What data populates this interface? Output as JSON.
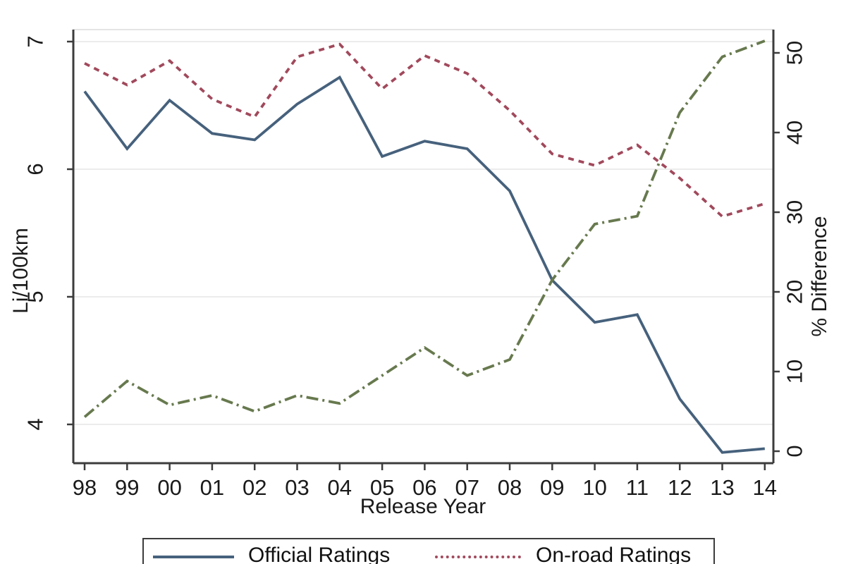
{
  "chart_data": {
    "type": "line",
    "title": "",
    "xlabel": "Release Year",
    "ylabel_left": "Li/100km",
    "ylabel_right": "% Difference",
    "categories": [
      "98",
      "99",
      "00",
      "01",
      "02",
      "03",
      "04",
      "05",
      "06",
      "07",
      "08",
      "09",
      "10",
      "11",
      "12",
      "13",
      "14"
    ],
    "left_axis": {
      "tick_labels": [
        "7",
        "6",
        "5",
        "4"
      ],
      "tick_values": [
        7,
        6,
        5,
        4
      ],
      "range_approx": [
        3.7,
        7.1
      ],
      "grid": true
    },
    "right_axis": {
      "tick_labels": [
        "0",
        "10",
        "20",
        "30",
        "40",
        "50"
      ],
      "tick_values": [
        0,
        10,
        20,
        30,
        40,
        50
      ],
      "range_approx": [
        -1.5,
        53
      ],
      "grid": false
    },
    "series": [
      {
        "name": "Official Ratings",
        "axis": "left",
        "style": "solid",
        "color": "#46617c",
        "values": [
          6.61,
          6.16,
          6.54,
          6.28,
          6.23,
          6.51,
          6.72,
          6.1,
          6.22,
          6.16,
          5.83,
          5.13,
          4.8,
          4.86,
          4.2,
          3.78,
          3.81
        ]
      },
      {
        "name": "On-road Ratings",
        "axis": "left",
        "style": "dashed",
        "color": "#a1495c",
        "values": [
          6.83,
          6.66,
          6.85,
          6.55,
          6.41,
          6.88,
          6.98,
          6.63,
          6.89,
          6.75,
          6.46,
          6.12,
          6.03,
          6.19,
          5.93,
          5.63,
          5.73
        ]
      },
      {
        "name": "% Difference",
        "axis": "right",
        "style": "dashdot",
        "color": "#67794e",
        "values": [
          4.3,
          8.8,
          5.8,
          7.0,
          5.0,
          7.0,
          6.0,
          9.5,
          13.0,
          9.5,
          11.5,
          21.5,
          28.5,
          29.5,
          42.5,
          49.5,
          51.5
        ]
      }
    ],
    "legend": {
      "position": "bottom",
      "visible_items": [
        "Official Ratings",
        "On-road Ratings"
      ]
    },
    "colors": {
      "official": "#46617c",
      "onroad": "#a1495c",
      "pct_difference": "#67794e",
      "gridline": "#ececec",
      "axis": "#3c3c3c",
      "text": "#1a1a1a",
      "background": "#ffffff"
    }
  }
}
